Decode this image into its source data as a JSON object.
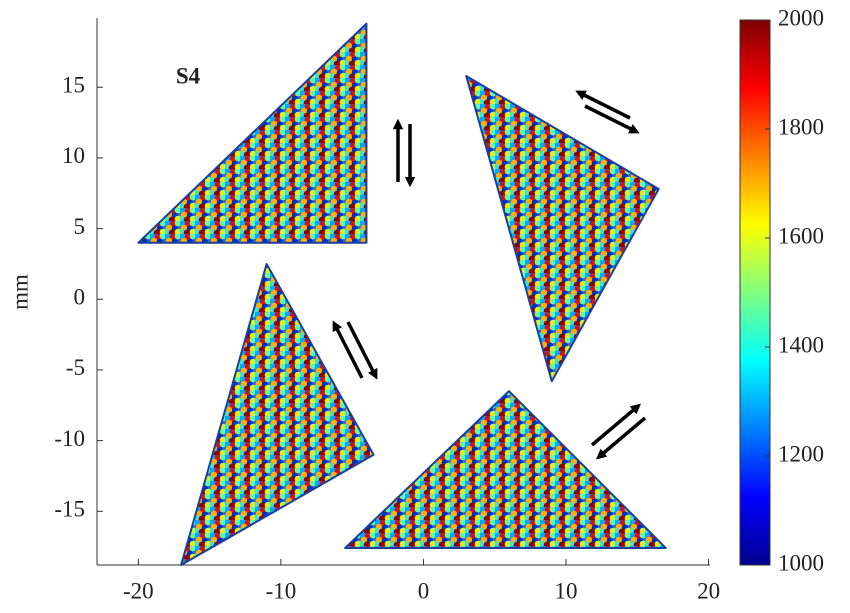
{
  "chart_data": {
    "type": "scatter",
    "annotation": "S4",
    "ylabel": "mm",
    "xlim": [
      -22.9,
      20.1
    ],
    "ylim": [
      -18.8,
      19.9
    ],
    "xticks": [
      -20,
      -10,
      0,
      10,
      20
    ],
    "yticks": [
      -15,
      -10,
      -5,
      0,
      5,
      10,
      15
    ],
    "regions": [
      {
        "x": [
          -20,
          -4,
          -4
        ],
        "y": [
          4,
          4,
          19.5
        ]
      },
      {
        "x": [
          3,
          16.5,
          9
        ],
        "y": [
          15.8,
          7.8,
          -5.8
        ]
      },
      {
        "x": [
          -11,
          -3.5,
          -17
        ],
        "y": [
          2.5,
          -11,
          -18.8
        ]
      },
      {
        "x": [
          6,
          17,
          -5.5
        ],
        "y": [
          -6.5,
          -17.6,
          -17.6
        ]
      }
    ],
    "colorbar": {
      "clim": [
        1000,
        2000
      ],
      "ticks": [
        1000,
        1200,
        1400,
        1600,
        1800,
        2000
      ],
      "colormap": "jet"
    }
  }
}
